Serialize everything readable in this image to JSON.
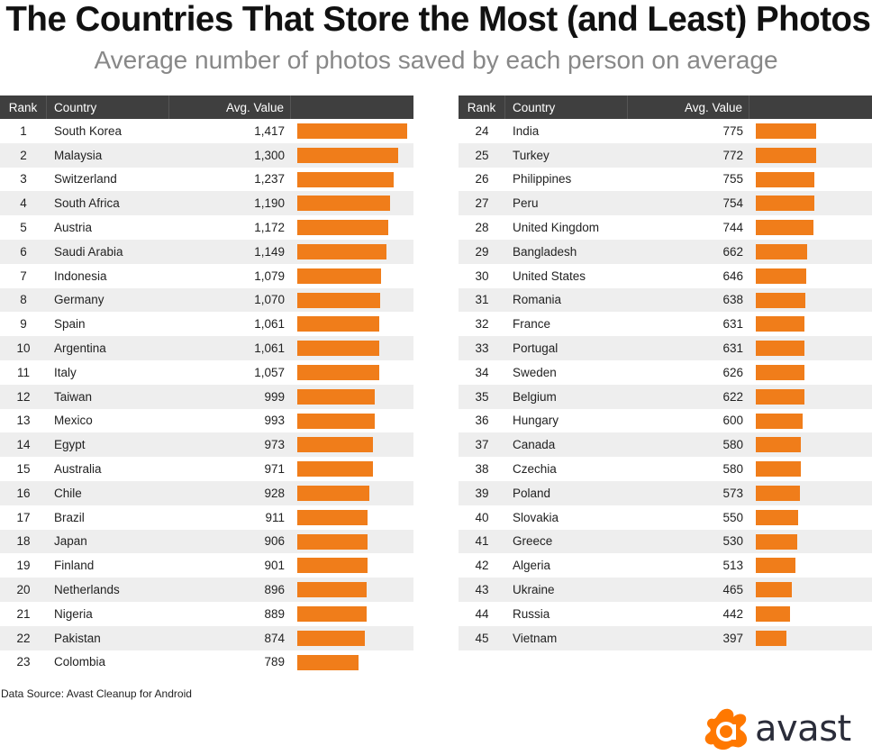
{
  "title": "The Countries That Store the Most (and Least) Photos",
  "subtitle": "Average number of photos saved by each person on average",
  "headers": {
    "rank": "Rank",
    "country": "Country",
    "value": "Avg. Value"
  },
  "source": "Data Source: Avast Cleanup for Android",
  "logo_text": "avast",
  "colors": {
    "bar": "#f07d1a",
    "header": "#3f3f3f",
    "logo": "#ff7800"
  },
  "chart_data": {
    "type": "bar",
    "orientation": "horizontal",
    "title": "The Countries That Store the Most (and Least) Photos",
    "subtitle": "Average number of photos saved by each person on average",
    "rows": [
      {
        "rank": 1,
        "country": "South Korea",
        "value": 1417
      },
      {
        "rank": 2,
        "country": "Malaysia",
        "value": 1300
      },
      {
        "rank": 3,
        "country": "Switzerland",
        "value": 1237
      },
      {
        "rank": 4,
        "country": "South Africa",
        "value": 1190
      },
      {
        "rank": 5,
        "country": "Austria",
        "value": 1172
      },
      {
        "rank": 6,
        "country": "Saudi Arabia",
        "value": 1149
      },
      {
        "rank": 7,
        "country": "Indonesia",
        "value": 1079
      },
      {
        "rank": 8,
        "country": "Germany",
        "value": 1070
      },
      {
        "rank": 9,
        "country": "Spain",
        "value": 1061
      },
      {
        "rank": 10,
        "country": "Argentina",
        "value": 1061
      },
      {
        "rank": 11,
        "country": "Italy",
        "value": 1057
      },
      {
        "rank": 12,
        "country": "Taiwan",
        "value": 999
      },
      {
        "rank": 13,
        "country": "Mexico",
        "value": 993
      },
      {
        "rank": 14,
        "country": "Egypt",
        "value": 973
      },
      {
        "rank": 15,
        "country": "Australia",
        "value": 971
      },
      {
        "rank": 16,
        "country": "Chile",
        "value": 928
      },
      {
        "rank": 17,
        "country": "Brazil",
        "value": 911
      },
      {
        "rank": 18,
        "country": "Japan",
        "value": 906
      },
      {
        "rank": 19,
        "country": "Finland",
        "value": 901
      },
      {
        "rank": 20,
        "country": "Netherlands",
        "value": 896
      },
      {
        "rank": 21,
        "country": "Nigeria",
        "value": 889
      },
      {
        "rank": 22,
        "country": "Pakistan",
        "value": 874
      },
      {
        "rank": 23,
        "country": "Colombia",
        "value": 789
      },
      {
        "rank": 24,
        "country": "India",
        "value": 775
      },
      {
        "rank": 25,
        "country": "Turkey",
        "value": 772
      },
      {
        "rank": 26,
        "country": "Philippines",
        "value": 755
      },
      {
        "rank": 27,
        "country": "Peru",
        "value": 754
      },
      {
        "rank": 28,
        "country": "United Kingdom",
        "value": 744
      },
      {
        "rank": 29,
        "country": "Bangladesh",
        "value": 662
      },
      {
        "rank": 30,
        "country": "United States",
        "value": 646
      },
      {
        "rank": 31,
        "country": "Romania",
        "value": 638
      },
      {
        "rank": 32,
        "country": "France",
        "value": 631
      },
      {
        "rank": 33,
        "country": "Portugal",
        "value": 631
      },
      {
        "rank": 34,
        "country": "Sweden",
        "value": 626
      },
      {
        "rank": 35,
        "country": "Belgium",
        "value": 622
      },
      {
        "rank": 36,
        "country": "Hungary",
        "value": 600
      },
      {
        "rank": 37,
        "country": "Canada",
        "value": 580
      },
      {
        "rank": 38,
        "country": "Czechia",
        "value": 580
      },
      {
        "rank": 39,
        "country": "Poland",
        "value": 573
      },
      {
        "rank": 40,
        "country": "Slovakia",
        "value": 550
      },
      {
        "rank": 41,
        "country": "Greece",
        "value": 530
      },
      {
        "rank": 42,
        "country": "Algeria",
        "value": 513
      },
      {
        "rank": 43,
        "country": "Ukraine",
        "value": 465
      },
      {
        "rank": 44,
        "country": "Russia",
        "value": 442
      },
      {
        "rank": 45,
        "country": "Vietnam",
        "value": 397
      }
    ]
  }
}
